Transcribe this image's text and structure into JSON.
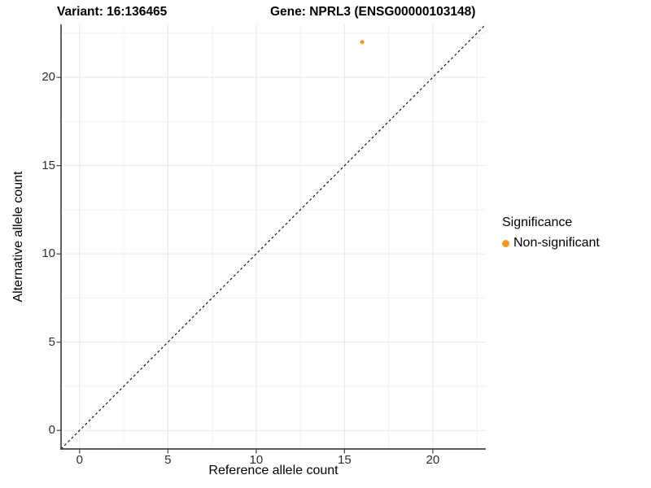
{
  "chart_data": {
    "type": "scatter",
    "title_left": "Variant: 16:136465",
    "title_right": "Gene: NPRL3 (ENSG00000103148)",
    "xlabel": "Reference allele count",
    "ylabel": "Alternative allele count",
    "xlim": [
      -1.05,
      23.0
    ],
    "ylim": [
      -1.05,
      23.0
    ],
    "x_ticks": [
      0,
      5,
      10,
      15,
      20
    ],
    "y_ticks": [
      0,
      5,
      10,
      15,
      20
    ],
    "x_minor_ticks": [
      2.5,
      7.5,
      12.5,
      17.5,
      22.5
    ],
    "y_minor_ticks": [
      2.5,
      7.5,
      12.5,
      17.5,
      22.5
    ],
    "grid": "major+minor",
    "identity_line": {
      "style": "dashed",
      "slope": 1,
      "intercept": 0,
      "color": "#000000"
    },
    "series": [
      {
        "name": "Non-significant",
        "color": "#F8991F",
        "points": [
          {
            "x": 16,
            "y": 22
          }
        ]
      }
    ],
    "legend": {
      "title": "Significance",
      "position": "right",
      "items": [
        {
          "label": "Non-significant",
          "color": "#F8991F"
        }
      ]
    },
    "colors": {
      "grid_major": "#E6E6E6",
      "grid_minor": "#F1F1F1",
      "axis_line": "#444444",
      "tick_mark": "#444444",
      "tick_label": "#2E2E2E",
      "background": "#FFFFFF"
    }
  }
}
